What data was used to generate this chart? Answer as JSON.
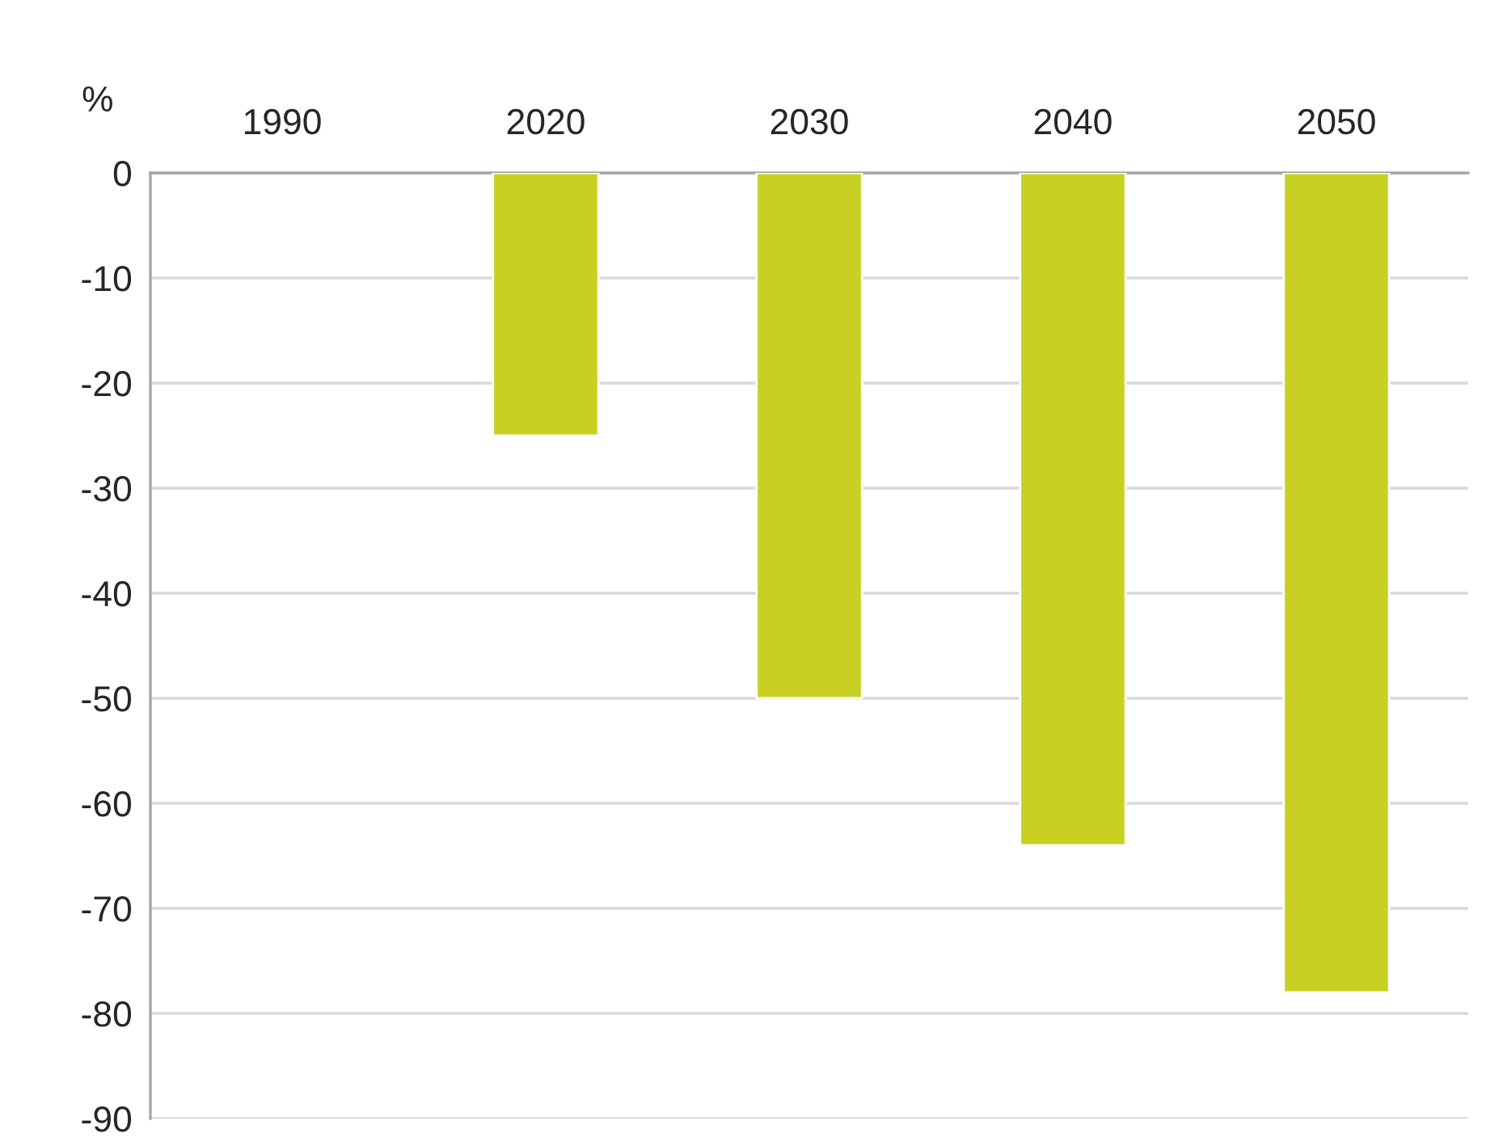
{
  "chart_data": {
    "type": "bar",
    "ylabel": "%",
    "categories": [
      "1990",
      "2020",
      "2030",
      "2040",
      "2050"
    ],
    "values": [
      null,
      -25,
      -50,
      -64,
      -78
    ],
    "color": "#c8d021",
    "ylim": [
      -90,
      0
    ],
    "yticks": [
      0,
      -10,
      -20,
      -30,
      -40,
      -50,
      -60,
      -70,
      -80,
      -90
    ],
    "grid": "y",
    "legend": false
  }
}
